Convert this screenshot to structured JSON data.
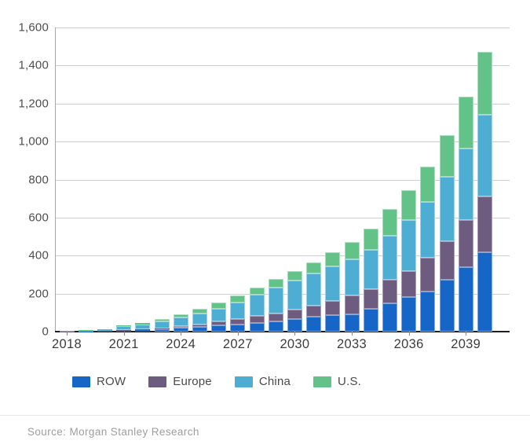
{
  "footer": {
    "source": "Source: Morgan Stanley Research"
  },
  "chart_data": {
    "type": "bar",
    "subtype": "stacked",
    "title": "",
    "xlabel": "",
    "ylabel": "",
    "ylim": [
      0,
      1600
    ],
    "ytick_step": 200,
    "grid": true,
    "legend_position": "bottom",
    "x": [
      2018,
      2019,
      2020,
      2021,
      2022,
      2023,
      2024,
      2025,
      2026,
      2027,
      2028,
      2029,
      2030,
      2031,
      2032,
      2033,
      2034,
      2035,
      2036,
      2037,
      2038,
      2039,
      2040
    ],
    "xtick_years": [
      2018,
      2021,
      2024,
      2027,
      2030,
      2033,
      2036,
      2039
    ],
    "xtick_labels": [
      "2018",
      "2021",
      "2024",
      "2027",
      "2030",
      "2033",
      "2036",
      "2039"
    ],
    "ytick_labels": [
      "0",
      "200",
      "400",
      "600",
      "800",
      "1,000",
      "1,200",
      "1,400",
      "1,600"
    ],
    "series": [
      {
        "name": "ROW",
        "color": "#1666c8",
        "border_color": "#7aa9e1",
        "values": [
          1,
          2,
          3,
          7,
          8,
          12,
          19,
          25,
          32,
          38,
          46,
          53,
          65,
          80,
          86,
          93,
          120,
          148,
          184,
          210,
          273,
          338,
          418
        ]
      },
      {
        "name": "Europe",
        "color": "#6d5c80",
        "border_color": "#a89cb5",
        "values": [
          0.5,
          1,
          1,
          2,
          3,
          6,
          12,
          14,
          20,
          28,
          35,
          44,
          52,
          58,
          77,
          96,
          105,
          124,
          133,
          177,
          203,
          251,
          293
        ]
      },
      {
        "name": "China",
        "color": "#4eadd3",
        "border_color": "#9cd3e8",
        "values": [
          2,
          3,
          5,
          20,
          28,
          36,
          45,
          58,
          68,
          89,
          112,
          135,
          152,
          166,
          180,
          193,
          207,
          234,
          269,
          296,
          338,
          374,
          430
        ]
      },
      {
        "name": "U.S.",
        "color": "#63c287",
        "border_color": "#abdebf",
        "values": [
          0.5,
          1,
          2,
          6,
          8,
          11,
          17,
          25,
          32,
          34,
          39,
          47,
          51,
          58,
          76,
          90,
          108,
          138,
          159,
          186,
          221,
          274,
          331
        ]
      }
    ]
  }
}
